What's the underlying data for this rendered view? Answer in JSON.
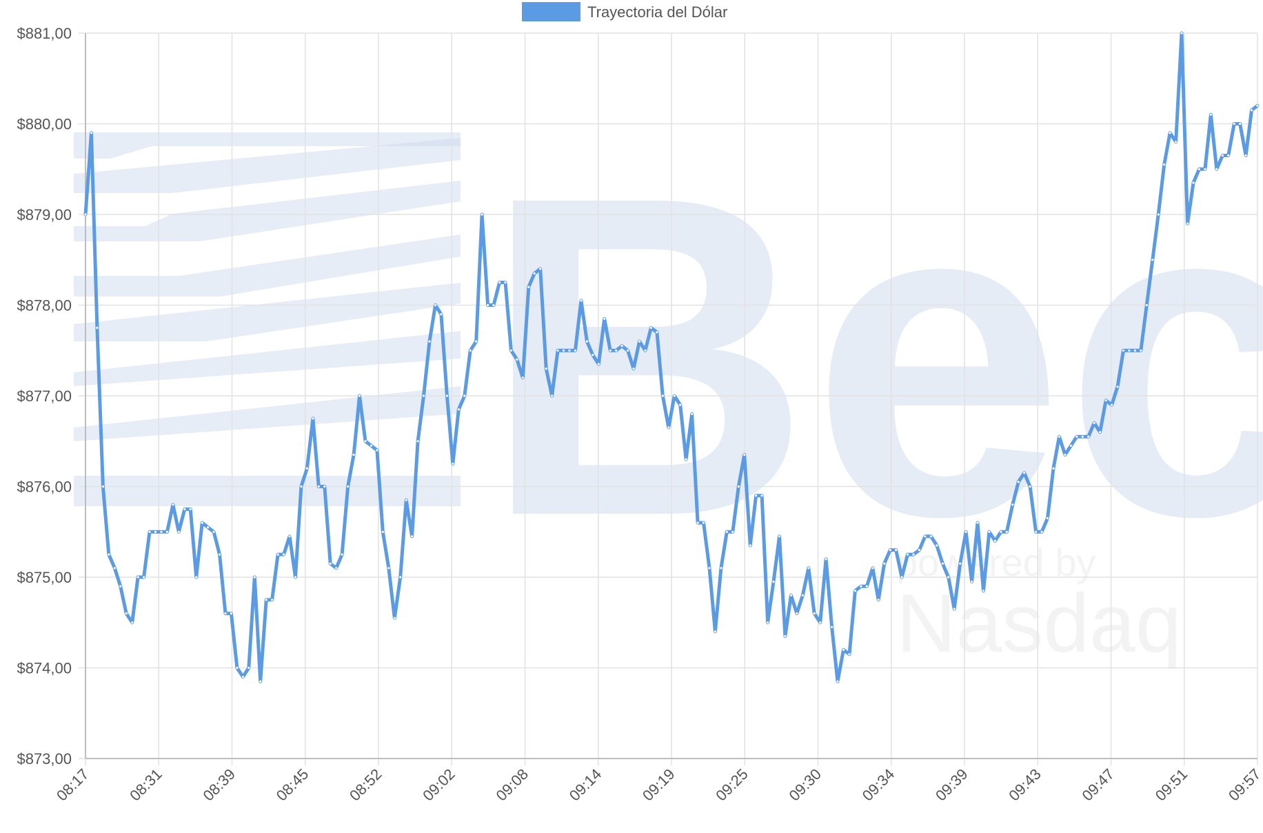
{
  "legend": {
    "label": "Trayectoria del Dólar",
    "color": "#5a9be3"
  },
  "watermark": {
    "logo": "Bec",
    "line1": "powered by",
    "line2": "Nasdaq"
  },
  "colors": {
    "series": "#5a9be3",
    "grid": "#e2e2e2",
    "watermark": "#c9d6ea"
  },
  "chart_data": {
    "type": "line",
    "title": "",
    "xlabel": "",
    "ylabel": "",
    "ylim": [
      873,
      881
    ],
    "y_ticks": [
      "$873,00",
      "$874,00",
      "$875,00",
      "$876,00",
      "$877,00",
      "$878,00",
      "$879,00",
      "$880,00",
      "$881,00"
    ],
    "x_ticks": [
      "08:17",
      "08:31",
      "08:39",
      "08:45",
      "08:52",
      "09:02",
      "09:08",
      "09:14",
      "09:19",
      "09:25",
      "09:30",
      "09:34",
      "09:39",
      "09:43",
      "09:47",
      "09:51",
      "09:57"
    ],
    "legend_position": "top-center",
    "grid": true,
    "series": [
      {
        "name": "Trayectoria del Dólar",
        "values": [
          879.0,
          879.9,
          877.75,
          876.0,
          875.25,
          875.1,
          874.9,
          874.6,
          874.5,
          875.0,
          875.0,
          875.5,
          875.5,
          875.5,
          875.5,
          875.8,
          875.5,
          875.75,
          875.75,
          875.0,
          875.6,
          875.55,
          875.5,
          875.25,
          874.6,
          874.6,
          874.0,
          873.9,
          874.0,
          875.0,
          873.85,
          874.75,
          874.75,
          875.25,
          875.25,
          875.45,
          875.0,
          876.0,
          876.2,
          876.75,
          876.0,
          876.0,
          875.15,
          875.1,
          875.25,
          876.0,
          876.35,
          877.0,
          876.5,
          876.45,
          876.4,
          875.5,
          875.1,
          874.55,
          875.0,
          875.85,
          875.45,
          876.5,
          877.0,
          877.6,
          878.0,
          877.9,
          877.0,
          876.25,
          876.85,
          877.0,
          877.5,
          877.6,
          879.0,
          878.0,
          878.0,
          878.25,
          878.25,
          877.5,
          877.4,
          877.2,
          878.2,
          878.35,
          878.4,
          877.3,
          877.0,
          877.5,
          877.5,
          877.5,
          877.5,
          878.05,
          877.6,
          877.45,
          877.35,
          877.85,
          877.5,
          877.5,
          877.55,
          877.5,
          877.3,
          877.6,
          877.5,
          877.75,
          877.7,
          877.0,
          876.65,
          877.0,
          876.9,
          876.3,
          876.8,
          875.6,
          875.6,
          875.1,
          874.4,
          875.1,
          875.5,
          875.5,
          876.0,
          876.35,
          875.35,
          875.9,
          875.9,
          874.5,
          874.95,
          875.45,
          874.35,
          874.8,
          874.6,
          874.8,
          875.1,
          874.6,
          874.5,
          875.2,
          874.45,
          873.85,
          874.2,
          874.15,
          874.85,
          874.9,
          874.9,
          875.1,
          874.75,
          875.15,
          875.3,
          875.3,
          875.0,
          875.25,
          875.25,
          875.3,
          875.45,
          875.45,
          875.35,
          875.15,
          875.0,
          874.65,
          875.15,
          875.5,
          874.95,
          875.6,
          874.85,
          875.5,
          875.4,
          875.5,
          875.5,
          875.8,
          876.05,
          876.15,
          876.0,
          875.5,
          875.5,
          875.65,
          876.2,
          876.55,
          876.35,
          876.45,
          876.55,
          876.55,
          876.55,
          876.7,
          876.6,
          876.95,
          876.9,
          877.1,
          877.5,
          877.5,
          877.5,
          877.5,
          878.0,
          878.5,
          879.0,
          879.55,
          879.9,
          879.8,
          881.0,
          878.9,
          879.35,
          879.5,
          879.5,
          880.1,
          879.5,
          879.65,
          879.65,
          880.0,
          880.0,
          879.65,
          880.15,
          880.2
        ]
      }
    ]
  }
}
